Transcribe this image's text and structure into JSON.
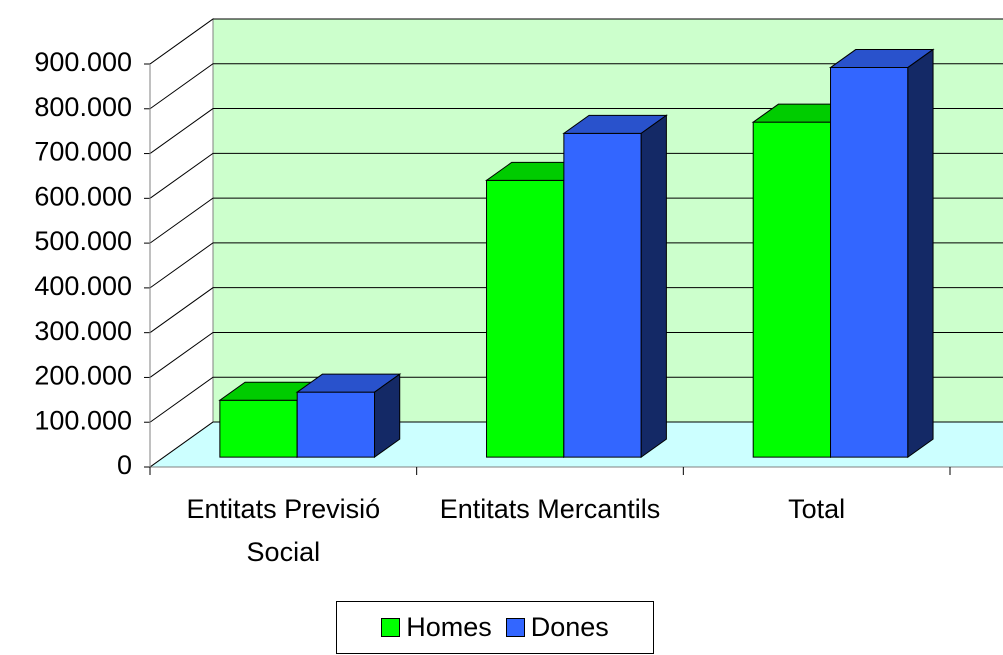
{
  "chart_data": {
    "type": "bar3d",
    "categories": [
      "Entitats Previsió Social",
      "Entitats Mercantils",
      "Total"
    ],
    "series": [
      {
        "name": "Homes",
        "color": "#00ff00",
        "values": [
          127000,
          618000,
          748000
        ]
      },
      {
        "name": "Dones",
        "color": "#3366ff",
        "values": [
          145000,
          723000,
          870000
        ]
      }
    ],
    "ylim": [
      0,
      900000
    ],
    "yticks": [
      0,
      {
        "value": 100000,
        "label": "100.000"
      },
      {
        "value": 200000,
        "label": "200.000"
      },
      {
        "value": 300000,
        "label": "300.000"
      },
      {
        "value": 400000,
        "label": "400.000"
      },
      {
        "value": 500000,
        "label": "500.000"
      },
      {
        "value": 600000,
        "label": "600.000"
      },
      {
        "value": 700000,
        "label": "700.000"
      },
      {
        "value": 800000,
        "label": "800.000"
      },
      {
        "value": 900000,
        "label": "900.000"
      }
    ],
    "grid": true,
    "legend": "bottom"
  }
}
